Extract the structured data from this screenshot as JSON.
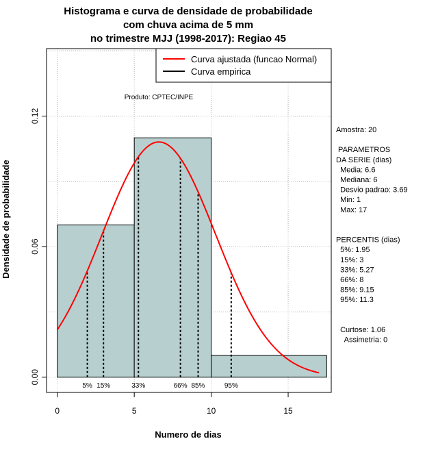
{
  "chart_data": {
    "type": "histogram",
    "title_lines": [
      "Histograma e curva de densidade de probabilidade",
      "com chuva acima de 5 mm",
      "no trimestre MJJ (1998-2017): Regiao 45"
    ],
    "xlabel": "Numero de dias",
    "ylabel": "Densidade de probabilidade",
    "xlim": [
      -0.7,
      17.8
    ],
    "ylim": [
      -0.007,
      0.151
    ],
    "x_ticks": [
      0,
      5,
      10,
      15
    ],
    "x_tick_labels": [
      "0",
      "5",
      "10",
      "15"
    ],
    "y_ticks": [
      0.0,
      0.06,
      0.12
    ],
    "y_tick_labels": [
      "0.00",
      "0.06",
      "0.12"
    ],
    "grid_x": [
      0,
      5,
      10,
      15
    ],
    "grid_y": [
      0.0,
      0.03,
      0.06,
      0.09,
      0.12,
      0.15
    ],
    "bars": [
      {
        "x0": 0,
        "x1": 5,
        "density": 0.07
      },
      {
        "x0": 5,
        "x1": 10,
        "density": 0.11
      },
      {
        "x0": 10,
        "x1": 17.5,
        "density": 0.01
      }
    ],
    "bar_color": "#b8cfcf",
    "curve_color": "#ff0000",
    "normal_fit": {
      "mean": 6.6,
      "sd": 3.69,
      "x_from": 0,
      "x_to": 17
    },
    "percentile_lines": [
      {
        "label": "5%",
        "x": 1.95
      },
      {
        "label": "15%",
        "x": 3
      },
      {
        "label": "33%",
        "x": 5.27
      },
      {
        "label": "66%",
        "x": 8
      },
      {
        "label": "85%",
        "x": 9.15
      },
      {
        "label": "95%",
        "x": 11.3
      }
    ],
    "legend": {
      "position": "top-right",
      "entries": [
        {
          "label": "Curva ajustada (funcao Normal)",
          "color": "#ff0000"
        },
        {
          "label": "Curva empirica",
          "color": "#000000"
        }
      ]
    },
    "product_label": "Produto: CPTEC/INPE",
    "side_text": [
      "Amostra: 20",
      "",
      " PARAMETROS",
      "DA SERIE (dias)",
      "  Media: 6.6",
      "  Mediana: 6",
      "  Desvio padrao: 3.69",
      "  Min: 1",
      "  Max: 17",
      "",
      "",
      "PERCENTIS (dias)",
      "  5%: 1.95",
      "  15%: 3",
      "  33%: 5.27",
      "  66%: 8",
      "  85%: 9.15",
      "  95%: 11.3",
      "",
      "",
      "  Curtose: 1.06",
      "    Assimetria: 0"
    ]
  }
}
